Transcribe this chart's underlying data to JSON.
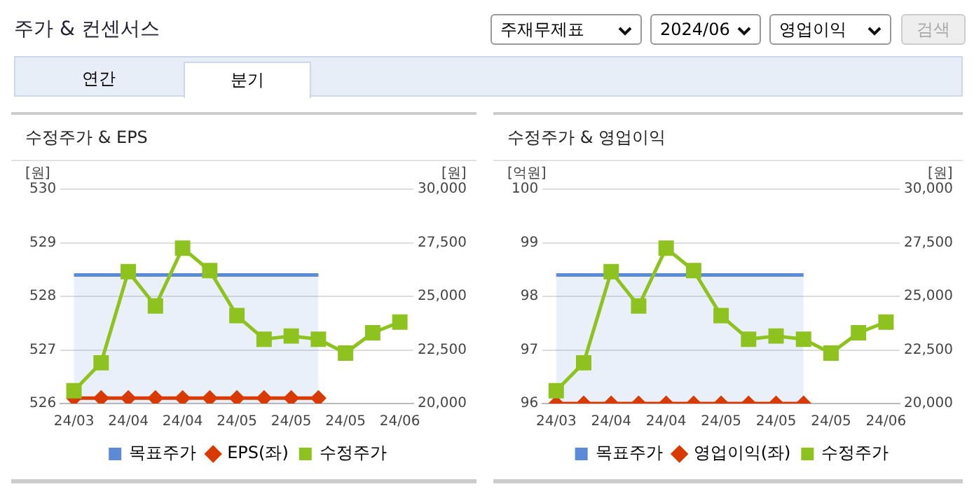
{
  "chart_data": [
    {
      "type": "other",
      "title": "주가 & 컨센서스",
      "annotations": [
        "주재무제표",
        "2024/06",
        "영업이익",
        "검색",
        "연간",
        "분기"
      ]
    },
    {
      "type": "line",
      "title": "수정주가 & EPS",
      "ylabel": "[원]",
      "y2label": "[원]",
      "categories": [
        "24/03",
        null,
        "24/04",
        null,
        "24/04",
        null,
        "24/05",
        null,
        "24/05",
        null,
        "24/05",
        null,
        "24/06"
      ],
      "series": [
        {
          "name": "목표주가",
          "type": "area",
          "axis": "y2",
          "color": "#5b8bd6",
          "marker": "none",
          "values": [
            26000,
            26000,
            26000,
            26000,
            26000,
            26000,
            26000,
            26000,
            26000,
            26000,
            null,
            null,
            null
          ]
        },
        {
          "name": "EPS(좌)",
          "type": "line",
          "color": "#d93a00",
          "marker": "diamond",
          "values": [
            526.1,
            526.1,
            526.1,
            526.1,
            526.1,
            526.1,
            526.1,
            526.1,
            526.1,
            526.1,
            null,
            null,
            null
          ]
        },
        {
          "name": "수정주가",
          "type": "line",
          "axis": "y2",
          "color": "#8dc21f",
          "marker": "square",
          "values": [
            20600,
            21900,
            26150,
            24550,
            27250,
            26200,
            24100,
            23000,
            23150,
            23000,
            22350,
            23300,
            23800
          ]
        }
      ],
      "ylim": [
        526,
        530
      ],
      "yticks": [
        526,
        527,
        528,
        529,
        530
      ],
      "y2lim": [
        20000,
        30000
      ],
      "y2ticks": [
        {
          "value": 20000,
          "label": "20,000"
        },
        {
          "value": 22500,
          "label": "22,500"
        },
        {
          "value": 25000,
          "label": "25,000"
        },
        {
          "value": 27500,
          "label": "27,500"
        },
        {
          "value": 30000,
          "label": "30,000"
        }
      ],
      "grid": "y",
      "legend": "bottom"
    },
    {
      "type": "line",
      "title": "수정주가 & 영업이익",
      "ylabel": "[억원]",
      "y2label": "[원]",
      "categories": [
        "24/03",
        null,
        "24/04",
        null,
        "24/04",
        null,
        "24/05",
        null,
        "24/05",
        null,
        "24/05",
        null,
        "24/06"
      ],
      "series": [
        {
          "name": "목표주가",
          "type": "area",
          "axis": "y2",
          "color": "#5b8bd6",
          "marker": "none",
          "values": [
            26000,
            26000,
            26000,
            26000,
            26000,
            26000,
            26000,
            26000,
            26000,
            26000,
            null,
            null,
            null
          ]
        },
        {
          "name": "영업이익(좌)",
          "type": "line",
          "color": "#d93a00",
          "marker": "diamond",
          "values": [
            96,
            96,
            96,
            96,
            96,
            96,
            96,
            96,
            96,
            96,
            null,
            null,
            null
          ]
        },
        {
          "name": "수정주가",
          "type": "line",
          "axis": "y2",
          "color": "#8dc21f",
          "marker": "square",
          "values": [
            20600,
            21900,
            26150,
            24550,
            27250,
            26200,
            24100,
            23000,
            23150,
            23000,
            22350,
            23300,
            23800
          ]
        }
      ],
      "ylim": [
        96,
        100
      ],
      "yticks": [
        96,
        97,
        98,
        99,
        100
      ],
      "y2lim": [
        20000,
        30000
      ],
      "y2ticks": [
        {
          "value": 20000,
          "label": "20,000"
        },
        {
          "value": 22500,
          "label": "22,500"
        },
        {
          "value": 25000,
          "label": "25,000"
        },
        {
          "value": 27500,
          "label": "27,500"
        },
        {
          "value": 30000,
          "label": "30,000"
        }
      ],
      "grid": "y",
      "legend": "bottom"
    }
  ]
}
